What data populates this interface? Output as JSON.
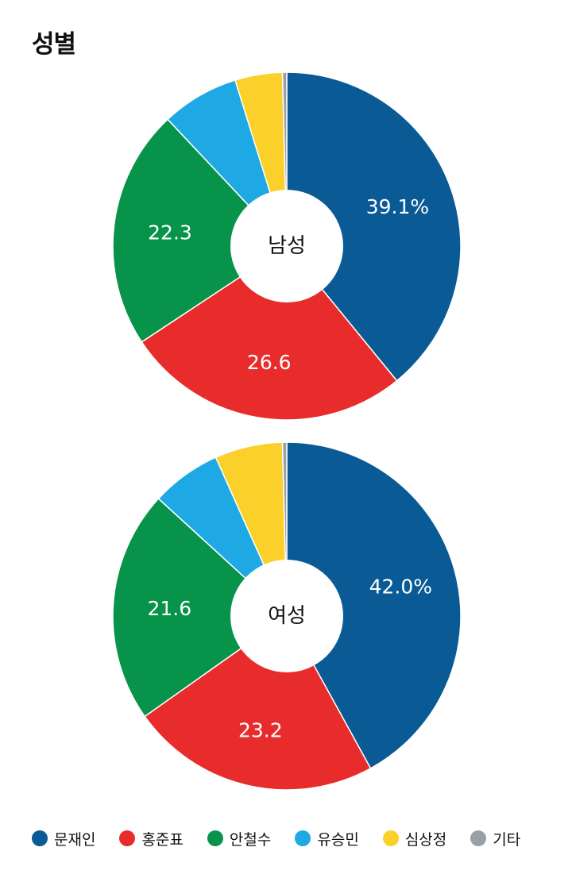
{
  "title": "성별",
  "chart_data": {
    "type": "pie",
    "categories": [
      "문재인",
      "홍준표",
      "안철수",
      "유승민",
      "심상정",
      "기타"
    ],
    "colors": [
      "#0a5a96",
      "#e82c2c",
      "#07944a",
      "#1ea9e4",
      "#fbd02a",
      "#9aa0a8"
    ],
    "charts": [
      {
        "center_label": "남성",
        "values": [
          39.1,
          26.6,
          22.3,
          7.2,
          4.4,
          0.4
        ],
        "value_labels": [
          "39.1%",
          "26.6",
          "22.3",
          "",
          "",
          ""
        ]
      },
      {
        "center_label": "여성",
        "values": [
          42.0,
          23.2,
          21.6,
          6.5,
          6.3,
          0.4
        ],
        "value_labels": [
          "42.0%",
          "23.2",
          "21.6",
          "",
          "",
          ""
        ]
      }
    ]
  },
  "legend": [
    {
      "label": "문재인",
      "color": "#0a5a96"
    },
    {
      "label": "홍준표",
      "color": "#e82c2c"
    },
    {
      "label": "안철수",
      "color": "#07944a"
    },
    {
      "label": "유승민",
      "color": "#1ea9e4"
    },
    {
      "label": "심상정",
      "color": "#fbd02a"
    },
    {
      "label": "기타",
      "color": "#9aa0a8"
    }
  ]
}
